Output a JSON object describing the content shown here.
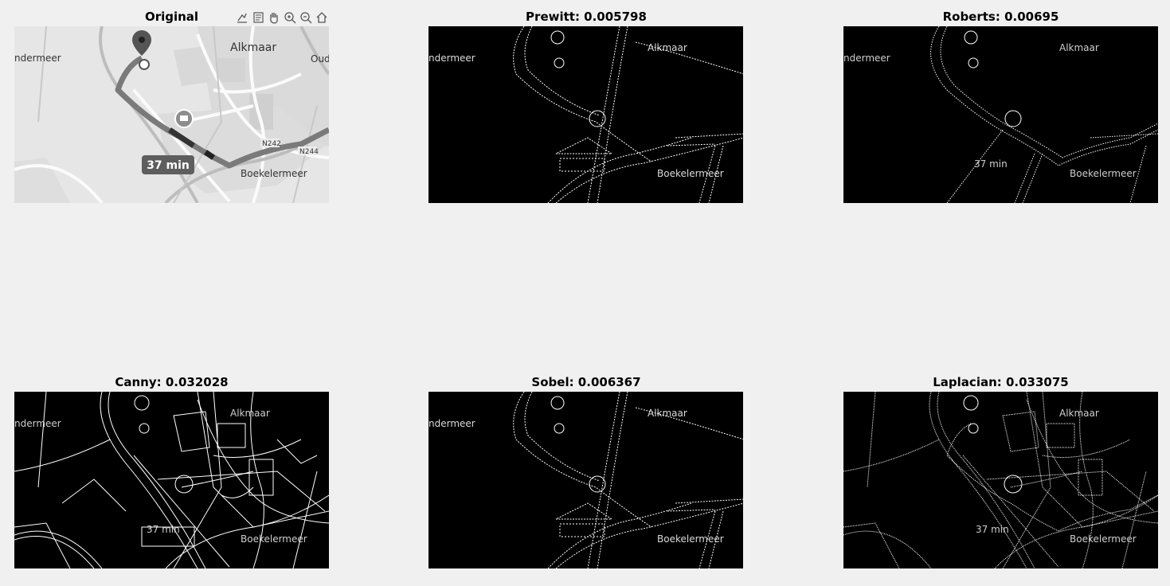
{
  "toolbar": {
    "icons": [
      "brush-icon",
      "datatip-icon",
      "pan-icon",
      "zoom-in-icon",
      "zoom-out-icon",
      "home-icon"
    ]
  },
  "panels": {
    "original": {
      "title": "Original"
    },
    "prewitt": {
      "title": "Prewitt: 0.005798"
    },
    "roberts": {
      "title": "Roberts: 0.00695"
    },
    "canny": {
      "title": "Canny: 0.032028"
    },
    "sobel": {
      "title": "Sobel: 0.006367"
    },
    "laplacian": {
      "title": "Laplacian: 0.033075"
    }
  },
  "map": {
    "labels": {
      "alkmaar": "Alkmaar",
      "oud": "Oud",
      "ndermeer": "ndermeer",
      "n242": "N242",
      "n244": "N244",
      "boekelermeer": "Boekelermeer",
      "eta": "37 min"
    }
  }
}
